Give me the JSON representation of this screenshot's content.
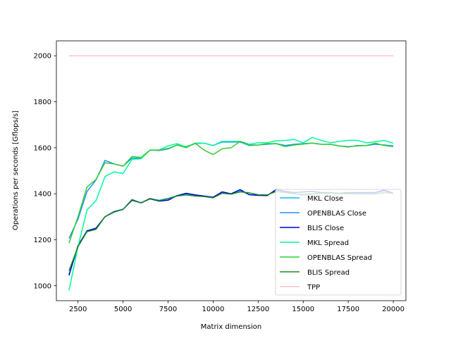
{
  "chart_data": {
    "type": "line",
    "xlabel": "Matrix dimension",
    "ylabel": "Operations per seconds [Gflops/s]",
    "xlim": [
      1300,
      20700
    ],
    "ylim": [
      935,
      2065
    ],
    "xticks": [
      2500,
      5000,
      7500,
      10000,
      12500,
      15000,
      17500,
      20000
    ],
    "yticks": [
      1000,
      1200,
      1400,
      1600,
      1800,
      2000
    ],
    "grid": false,
    "legend_position": "lower-right",
    "x": [
      2000,
      2500,
      3000,
      3500,
      4000,
      4500,
      5000,
      5500,
      6000,
      6500,
      7000,
      7500,
      8000,
      8500,
      9000,
      9500,
      10000,
      10500,
      11000,
      11500,
      12000,
      12500,
      13000,
      13500,
      14000,
      14500,
      15000,
      15500,
      16000,
      16500,
      17000,
      17500,
      18000,
      18500,
      19000,
      19500,
      20000
    ],
    "series": [
      {
        "name": "MKL Close",
        "color": "#00bfff",
        "values": [
          1050,
          1170,
          1240,
          1250,
          1300,
          1322,
          1333,
          1372,
          1362,
          1378,
          1372,
          1380,
          1392,
          1398,
          1395,
          1388,
          1385,
          1405,
          1400,
          1413,
          1397,
          1393,
          1393,
          1416,
          1410,
          1403,
          1392,
          1398,
          1402,
          1405,
          1400,
          1400,
          1402,
          1403,
          1406,
          1412,
          1400
        ]
      },
      {
        "name": "OPENBLAS Close",
        "color": "#1e90ff",
        "values": [
          1205,
          1290,
          1410,
          1460,
          1545,
          1530,
          1520,
          1555,
          1555,
          1590,
          1588,
          1595,
          1612,
          1605,
          1618,
          1620,
          1610,
          1625,
          1625,
          1625,
          1610,
          1612,
          1615,
          1618,
          1610,
          1615,
          1618,
          1620,
          1615,
          1615,
          1608,
          1605,
          1608,
          1610,
          1615,
          1612,
          1608
        ]
      },
      {
        "name": "BLIS Close",
        "color": "#0000cd",
        "values": [
          1045,
          1175,
          1238,
          1250,
          1300,
          1322,
          1332,
          1372,
          1360,
          1378,
          1368,
          1372,
          1392,
          1402,
          1395,
          1390,
          1385,
          1408,
          1400,
          1418,
          1396,
          1393,
          1392,
          1418,
          1410,
          1405,
          1408,
          1410,
          1405,
          1405,
          1402,
          1405,
          1405,
          1405,
          1405,
          1416,
          1402
        ]
      },
      {
        "name": "MKL Spread",
        "color": "#00fa9a",
        "values": [
          980,
          1170,
          1330,
          1370,
          1475,
          1495,
          1488,
          1550,
          1552,
          1590,
          1590,
          1608,
          1618,
          1603,
          1620,
          1620,
          1610,
          1628,
          1628,
          1628,
          1615,
          1622,
          1622,
          1630,
          1632,
          1636,
          1622,
          1645,
          1632,
          1622,
          1628,
          1632,
          1632,
          1622,
          1626,
          1632,
          1620
        ]
      },
      {
        "name": "OPENBLAS Spread",
        "color": "#32cd32",
        "values": [
          1185,
          1300,
          1430,
          1462,
          1535,
          1530,
          1520,
          1562,
          1558,
          1590,
          1590,
          1597,
          1612,
          1600,
          1620,
          1590,
          1570,
          1596,
          1600,
          1628,
          1612,
          1612,
          1618,
          1618,
          1605,
          1612,
          1616,
          1620,
          1615,
          1615,
          1608,
          1603,
          1610,
          1610,
          1620,
          1610,
          1605
        ]
      },
      {
        "name": "BLIS Spread",
        "color": "#228b22",
        "values": [
          1065,
          1170,
          1235,
          1245,
          1300,
          1320,
          1332,
          1375,
          1360,
          1380,
          1370,
          1378,
          1390,
          1395,
          1390,
          1388,
          1382,
          1402,
          1398,
          1408,
          1404,
          1396,
          1395,
          1410,
          1405,
          1400,
          1398,
          1400,
          1402,
          1403,
          1402,
          1400,
          1400,
          1400,
          1400,
          1405,
          1402
        ]
      },
      {
        "name": "TPP",
        "color": "#ffc0cb",
        "values": [
          2000,
          2000,
          2000,
          2000,
          2000,
          2000,
          2000,
          2000,
          2000,
          2000,
          2000,
          2000,
          2000,
          2000,
          2000,
          2000,
          2000,
          2000,
          2000,
          2000,
          2000,
          2000,
          2000,
          2000,
          2000,
          2000,
          2000,
          2000,
          2000,
          2000,
          2000,
          2000,
          2000,
          2000,
          2000,
          2000,
          2000
        ]
      }
    ]
  }
}
